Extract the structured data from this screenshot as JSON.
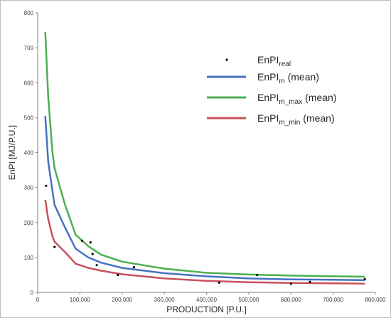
{
  "chart_data": {
    "type": "line",
    "xlabel": "PRODUCTION [P.U.]",
    "ylabel": "EnPI [MJ/P.U.]",
    "xlim": [
      0,
      800000
    ],
    "ylim": [
      0,
      800
    ],
    "x_ticks": [
      0,
      100000,
      200000,
      300000,
      400000,
      500000,
      600000,
      700000,
      800000
    ],
    "x_tick_labels": [
      "0",
      "100,000",
      "200,000",
      "300,000",
      "400,000",
      "500,000",
      "600,000",
      "700,000",
      "800,000"
    ],
    "y_ticks": [
      0,
      100,
      200,
      300,
      400,
      500,
      600,
      700,
      800
    ],
    "y_tick_labels": [
      "0",
      "100",
      "200",
      "300",
      "400",
      "500",
      "600",
      "700",
      "800"
    ],
    "grid": false,
    "legend_position": "top-right",
    "legend": [
      {
        "base": "EnPI",
        "sub": "real",
        "suffix": ""
      },
      {
        "base": "EnPI",
        "sub": "m",
        "suffix": " (mean)"
      },
      {
        "base": "EnPI",
        "sub": "m_max",
        "suffix": " (mean)"
      },
      {
        "base": "EnPI",
        "sub": "m_min",
        "suffix": " (mean)"
      }
    ],
    "series": [
      {
        "kind": "scatter",
        "color": "#000000",
        "points": [
          [
            20000,
            305
          ],
          [
            40000,
            130
          ],
          [
            105000,
            148
          ],
          [
            125000,
            143
          ],
          [
            130000,
            110
          ],
          [
            140000,
            78
          ],
          [
            190000,
            50
          ],
          [
            228000,
            72
          ],
          [
            430000,
            28
          ],
          [
            520000,
            50
          ],
          [
            600000,
            25
          ],
          [
            645000,
            30
          ],
          [
            775000,
            38
          ]
        ]
      },
      {
        "kind": "line",
        "color": "#4472c4",
        "points": [
          [
            18000,
            505
          ],
          [
            25000,
            375
          ],
          [
            35000,
            290
          ],
          [
            40000,
            250
          ],
          [
            65000,
            185
          ],
          [
            90000,
            125
          ],
          [
            120000,
            100
          ],
          [
            150000,
            85
          ],
          [
            200000,
            70
          ],
          [
            300000,
            55
          ],
          [
            400000,
            46
          ],
          [
            500000,
            40
          ],
          [
            600000,
            37
          ],
          [
            700000,
            36
          ],
          [
            775000,
            35
          ]
        ]
      },
      {
        "kind": "line",
        "color": "#4caf50",
        "points": [
          [
            18000,
            745
          ],
          [
            25000,
            560
          ],
          [
            35000,
            400
          ],
          [
            40000,
            355
          ],
          [
            65000,
            250
          ],
          [
            90000,
            165
          ],
          [
            120000,
            132
          ],
          [
            150000,
            108
          ],
          [
            200000,
            88
          ],
          [
            300000,
            68
          ],
          [
            400000,
            56
          ],
          [
            500000,
            51
          ],
          [
            600000,
            48
          ],
          [
            700000,
            46
          ],
          [
            775000,
            45
          ]
        ]
      },
      {
        "kind": "line",
        "color": "#c9505b",
        "points": [
          [
            18000,
            265
          ],
          [
            25000,
            210
          ],
          [
            35000,
            160
          ],
          [
            40000,
            145
          ],
          [
            65000,
            115
          ],
          [
            90000,
            82
          ],
          [
            120000,
            70
          ],
          [
            150000,
            62
          ],
          [
            200000,
            52
          ],
          [
            300000,
            40
          ],
          [
            400000,
            33
          ],
          [
            500000,
            29
          ],
          [
            600000,
            27
          ],
          [
            700000,
            26
          ],
          [
            775000,
            25
          ]
        ]
      }
    ]
  }
}
